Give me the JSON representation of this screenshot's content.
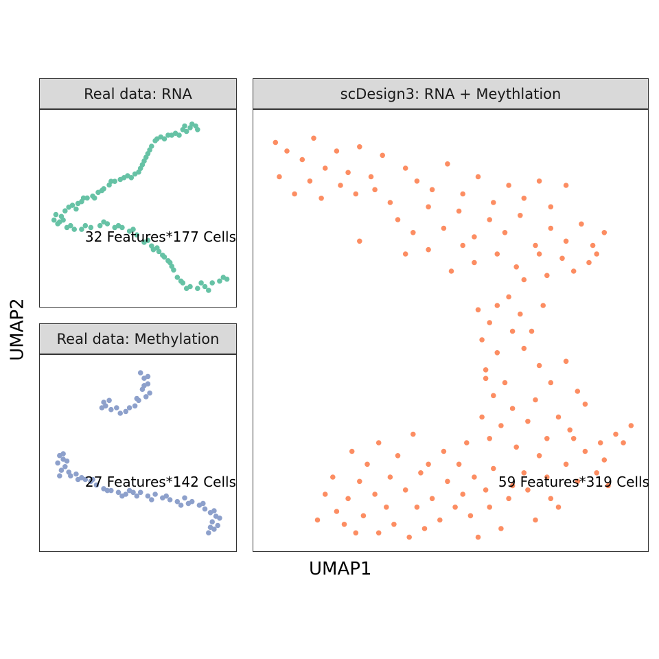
{
  "figure": {
    "xlabel": "UMAP1",
    "ylabel": "UMAP2"
  },
  "chart_data": [
    {
      "type": "scatter",
      "title": "Real data: RNA",
      "annotation": "32 Features*177 Cells",
      "color": "#66c2a5",
      "xlim": [
        0,
        10
      ],
      "ylim": [
        0,
        10
      ],
      "points": [
        [
          0.4,
          4.4
        ],
        [
          0.6,
          4.2
        ],
        [
          0.8,
          4.6
        ],
        [
          1.0,
          4.9
        ],
        [
          1.2,
          5.1
        ],
        [
          1.4,
          5.2
        ],
        [
          1.6,
          5.0
        ],
        [
          1.9,
          5.4
        ],
        [
          2.2,
          5.6
        ],
        [
          2.5,
          5.7
        ],
        [
          2.8,
          5.9
        ],
        [
          3.1,
          6.1
        ],
        [
          3.4,
          6.3
        ],
        [
          3.7,
          6.5
        ],
        [
          4.0,
          6.6
        ],
        [
          4.4,
          6.8
        ],
        [
          4.8,
          6.9
        ],
        [
          5.1,
          7.2
        ],
        [
          5.3,
          7.6
        ],
        [
          5.5,
          8.0
        ],
        [
          5.7,
          8.4
        ],
        [
          5.9,
          8.7
        ],
        [
          6.2,
          8.9
        ],
        [
          6.6,
          9.0
        ],
        [
          7.0,
          9.1
        ],
        [
          7.4,
          9.3
        ],
        [
          7.8,
          9.4
        ],
        [
          8.1,
          9.5
        ],
        [
          7.6,
          9.2
        ],
        [
          7.2,
          9.0
        ],
        [
          5.0,
          7.0
        ],
        [
          5.2,
          7.4
        ],
        [
          5.4,
          7.8
        ],
        [
          5.6,
          8.2
        ],
        [
          6.0,
          8.8
        ],
        [
          6.4,
          8.8
        ],
        [
          6.8,
          9.0
        ],
        [
          7.9,
          9.6
        ],
        [
          8.2,
          9.3
        ],
        [
          7.5,
          9.5
        ],
        [
          0.7,
          4.3
        ],
        [
          1.1,
          4.0
        ],
        [
          1.5,
          3.9
        ],
        [
          1.9,
          3.9
        ],
        [
          2.4,
          4.0
        ],
        [
          2.9,
          4.1
        ],
        [
          3.3,
          4.2
        ],
        [
          3.7,
          4.0
        ],
        [
          4.1,
          4.0
        ],
        [
          4.5,
          3.8
        ],
        [
          4.9,
          3.6
        ],
        [
          5.3,
          3.2
        ],
        [
          5.7,
          3.0
        ],
        [
          6.1,
          2.7
        ],
        [
          6.4,
          2.4
        ],
        [
          6.7,
          2.1
        ],
        [
          6.9,
          1.7
        ],
        [
          7.1,
          1.3
        ],
        [
          7.4,
          1.0
        ],
        [
          7.8,
          0.8
        ],
        [
          8.2,
          0.7
        ],
        [
          8.6,
          0.8
        ],
        [
          9.0,
          1.0
        ],
        [
          9.4,
          1.1
        ],
        [
          9.8,
          1.2
        ],
        [
          9.6,
          1.3
        ],
        [
          8.8,
          0.6
        ],
        [
          8.4,
          1.0
        ],
        [
          7.6,
          0.7
        ],
        [
          6.8,
          1.9
        ],
        [
          6.0,
          2.9
        ],
        [
          5.5,
          3.3
        ],
        [
          4.7,
          3.9
        ],
        [
          3.9,
          4.1
        ],
        [
          3.1,
          4.3
        ],
        [
          2.1,
          4.1
        ],
        [
          1.3,
          4.1
        ],
        [
          0.9,
          4.4
        ],
        [
          0.5,
          4.7
        ],
        [
          1.7,
          5.3
        ],
        [
          2.0,
          5.6
        ],
        [
          2.6,
          5.6
        ],
        [
          3.0,
          6.0
        ],
        [
          3.5,
          6.5
        ],
        [
          4.2,
          6.7
        ],
        [
          4.6,
          6.7
        ],
        [
          7.3,
          1.1
        ],
        [
          6.6,
          2.2
        ],
        [
          6.3,
          2.5
        ],
        [
          5.8,
          2.8
        ]
      ]
    },
    {
      "type": "scatter",
      "title": "Real data: Methylation",
      "annotation": "27 Features*142 Cells",
      "color": "#8da0cb",
      "xlim": [
        0,
        10
      ],
      "ylim": [
        0,
        10
      ],
      "points": [
        [
          5.1,
          9.4
        ],
        [
          5.3,
          9.1
        ],
        [
          5.5,
          8.8
        ],
        [
          5.2,
          8.5
        ],
        [
          5.6,
          8.3
        ],
        [
          5.4,
          8.1
        ],
        [
          5.0,
          7.9
        ],
        [
          4.8,
          7.6
        ],
        [
          4.5,
          7.5
        ],
        [
          4.3,
          7.3
        ],
        [
          4.0,
          7.2
        ],
        [
          3.8,
          7.5
        ],
        [
          3.5,
          7.4
        ],
        [
          3.2,
          7.6
        ],
        [
          3.0,
          7.5
        ],
        [
          3.1,
          7.8
        ],
        [
          3.4,
          7.9
        ],
        [
          5.3,
          8.7
        ],
        [
          5.5,
          9.2
        ],
        [
          4.9,
          8.0
        ],
        [
          0.7,
          4.9
        ],
        [
          0.6,
          4.5
        ],
        [
          0.8,
          4.1
        ],
        [
          0.7,
          3.8
        ],
        [
          1.0,
          4.3
        ],
        [
          0.9,
          4.7
        ],
        [
          1.1,
          4.6
        ],
        [
          1.3,
          3.8
        ],
        [
          1.6,
          3.9
        ],
        [
          1.9,
          3.7
        ],
        [
          2.1,
          3.6
        ],
        [
          2.4,
          3.5
        ],
        [
          2.7,
          3.3
        ],
        [
          3.1,
          3.1
        ],
        [
          3.5,
          3.0
        ],
        [
          3.9,
          2.9
        ],
        [
          4.3,
          2.8
        ],
        [
          4.7,
          2.9
        ],
        [
          5.1,
          2.9
        ],
        [
          5.5,
          2.7
        ],
        [
          5.9,
          2.8
        ],
        [
          6.3,
          2.6
        ],
        [
          6.7,
          2.5
        ],
        [
          7.1,
          2.4
        ],
        [
          7.5,
          2.6
        ],
        [
          7.9,
          2.4
        ],
        [
          8.3,
          2.2
        ],
        [
          8.6,
          2.0
        ],
        [
          8.9,
          1.8
        ],
        [
          9.2,
          1.6
        ],
        [
          9.0,
          1.3
        ],
        [
          8.9,
          1.0
        ],
        [
          8.8,
          0.7
        ],
        [
          9.1,
          0.9
        ],
        [
          9.3,
          1.1
        ],
        [
          9.4,
          1.5
        ],
        [
          9.1,
          1.9
        ],
        [
          8.5,
          2.3
        ],
        [
          7.3,
          2.2
        ],
        [
          6.5,
          2.7
        ],
        [
          5.7,
          2.5
        ],
        [
          4.9,
          2.7
        ],
        [
          4.1,
          2.7
        ],
        [
          3.3,
          3.0
        ],
        [
          2.5,
          3.6
        ],
        [
          1.7,
          3.6
        ],
        [
          1.2,
          4.0
        ],
        [
          0.9,
          5.0
        ],
        [
          7.7,
          2.3
        ],
        [
          4.5,
          3.0
        ]
      ]
    },
    {
      "type": "scatter",
      "title": "scDesign3: RNA + Meythlation",
      "annotation": "59 Features*319 Cells",
      "color": "#fc8d62",
      "xlim": [
        0,
        10
      ],
      "ylim": [
        0,
        10
      ],
      "points": [
        [
          0.4,
          9.4
        ],
        [
          0.7,
          9.2
        ],
        [
          1.1,
          9.0
        ],
        [
          1.4,
          9.5
        ],
        [
          1.7,
          8.8
        ],
        [
          2.0,
          9.2
        ],
        [
          2.3,
          8.7
        ],
        [
          2.6,
          9.3
        ],
        [
          2.9,
          8.6
        ],
        [
          3.2,
          9.1
        ],
        [
          0.5,
          8.6
        ],
        [
          0.9,
          8.2
        ],
        [
          1.3,
          8.5
        ],
        [
          1.6,
          8.1
        ],
        [
          2.1,
          8.4
        ],
        [
          2.5,
          8.2
        ],
        [
          3.0,
          8.3
        ],
        [
          3.4,
          8.0
        ],
        [
          3.8,
          8.8
        ],
        [
          4.1,
          8.5
        ],
        [
          4.5,
          8.3
        ],
        [
          4.9,
          8.9
        ],
        [
          5.3,
          8.2
        ],
        [
          5.7,
          8.6
        ],
        [
          6.1,
          8.0
        ],
        [
          6.5,
          8.4
        ],
        [
          6.9,
          8.1
        ],
        [
          7.3,
          8.5
        ],
        [
          7.6,
          7.9
        ],
        [
          8.0,
          8.4
        ],
        [
          3.6,
          7.6
        ],
        [
          4.0,
          7.3
        ],
        [
          4.4,
          7.9
        ],
        [
          4.8,
          7.4
        ],
        [
          5.2,
          7.8
        ],
        [
          5.6,
          7.2
        ],
        [
          6.0,
          7.6
        ],
        [
          6.4,
          7.3
        ],
        [
          6.8,
          7.7
        ],
        [
          7.2,
          7.0
        ],
        [
          7.6,
          7.4
        ],
        [
          8.0,
          7.1
        ],
        [
          8.4,
          7.5
        ],
        [
          8.7,
          7.0
        ],
        [
          9.0,
          7.3
        ],
        [
          7.9,
          6.7
        ],
        [
          8.2,
          6.4
        ],
        [
          8.6,
          6.6
        ],
        [
          7.3,
          6.8
        ],
        [
          6.7,
          6.5
        ],
        [
          5.6,
          6.6
        ],
        [
          5.0,
          6.4
        ],
        [
          4.4,
          6.9
        ],
        [
          3.8,
          6.8
        ],
        [
          2.6,
          7.1
        ],
        [
          6.2,
          6.8
        ],
        [
          5.3,
          7.0
        ],
        [
          6.9,
          6.2
        ],
        [
          7.5,
          6.3
        ],
        [
          8.8,
          6.8
        ],
        [
          5.7,
          5.5
        ],
        [
          6.0,
          5.2
        ],
        [
          5.8,
          4.8
        ],
        [
          6.2,
          4.5
        ],
        [
          5.9,
          4.1
        ],
        [
          6.4,
          3.8
        ],
        [
          6.1,
          3.5
        ],
        [
          6.6,
          3.2
        ],
        [
          5.8,
          3.0
        ],
        [
          6.3,
          2.8
        ],
        [
          6.5,
          5.8
        ],
        [
          6.8,
          5.4
        ],
        [
          7.1,
          5.0
        ],
        [
          6.9,
          4.6
        ],
        [
          7.3,
          4.2
        ],
        [
          7.6,
          3.8
        ],
        [
          7.2,
          3.4
        ],
        [
          7.8,
          3.0
        ],
        [
          8.1,
          2.7
        ],
        [
          7.5,
          2.5
        ],
        [
          6.6,
          5.0
        ],
        [
          6.2,
          5.6
        ],
        [
          7.4,
          5.6
        ],
        [
          8.0,
          4.3
        ],
        [
          8.3,
          3.6
        ],
        [
          7.0,
          2.9
        ],
        [
          6.7,
          2.3
        ],
        [
          5.9,
          3.9
        ],
        [
          6.0,
          2.5
        ],
        [
          8.5,
          3.3
        ],
        [
          5.6,
          1.6
        ],
        [
          5.9,
          1.3
        ],
        [
          5.3,
          1.2
        ],
        [
          4.9,
          1.5
        ],
        [
          4.5,
          1.1
        ],
        [
          4.2,
          1.7
        ],
        [
          3.8,
          1.3
        ],
        [
          3.4,
          1.6
        ],
        [
          3.0,
          1.2
        ],
        [
          2.6,
          1.5
        ],
        [
          2.3,
          1.1
        ],
        [
          2.0,
          0.8
        ],
        [
          1.7,
          1.2
        ],
        [
          2.2,
          0.5
        ],
        [
          2.7,
          0.7
        ],
        [
          3.1,
          0.3
        ],
        [
          3.5,
          0.5
        ],
        [
          3.9,
          0.2
        ],
        [
          4.3,
          0.4
        ],
        [
          4.7,
          0.6
        ],
        [
          5.1,
          0.9
        ],
        [
          5.5,
          0.7
        ],
        [
          6.0,
          0.9
        ],
        [
          6.5,
          1.1
        ],
        [
          7.0,
          1.3
        ],
        [
          7.5,
          1.6
        ],
        [
          8.0,
          1.9
        ],
        [
          8.5,
          2.2
        ],
        [
          9.0,
          2.0
        ],
        [
          9.5,
          2.4
        ],
        [
          7.2,
          0.6
        ],
        [
          7.8,
          0.9
        ],
        [
          8.3,
          1.5
        ],
        [
          8.8,
          1.7
        ],
        [
          9.3,
          2.6
        ],
        [
          9.7,
          2.8
        ],
        [
          6.3,
          0.4
        ],
        [
          5.7,
          0.2
        ],
        [
          4.1,
          0.9
        ],
        [
          3.3,
          0.9
        ],
        [
          2.5,
          0.3
        ],
        [
          1.9,
          1.6
        ],
        [
          1.5,
          0.6
        ],
        [
          4.8,
          2.2
        ],
        [
          5.4,
          2.4
        ],
        [
          6.1,
          1.8
        ],
        [
          6.9,
          1.7
        ],
        [
          7.6,
          1.1
        ],
        [
          8.2,
          2.5
        ],
        [
          8.9,
          2.4
        ],
        [
          9.1,
          1.4
        ],
        [
          2.8,
          1.9
        ],
        [
          3.6,
          2.1
        ],
        [
          4.4,
          1.9
        ],
        [
          5.2,
          1.9
        ],
        [
          6.6,
          1.4
        ],
        [
          7.3,
          2.1
        ],
        [
          4.0,
          2.6
        ],
        [
          3.1,
          2.4
        ],
        [
          2.4,
          2.2
        ]
      ]
    }
  ]
}
